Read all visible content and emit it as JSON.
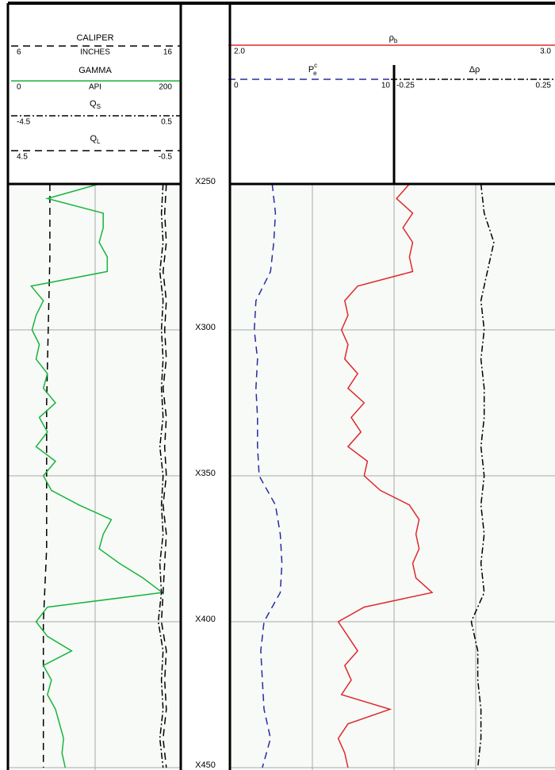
{
  "chart_data": {
    "type": "well-log",
    "depth": {
      "ylim": [
        250,
        450
      ],
      "yticks": [
        {
          "value": 250,
          "label": "X250"
        },
        {
          "value": 300,
          "label": "X300"
        },
        {
          "value": 350,
          "label": "X350"
        },
        {
          "value": 400,
          "label": "X400"
        },
        {
          "value": 450,
          "label": "X450"
        }
      ]
    },
    "tracks": [
      {
        "curves": [
          {
            "name": "CALIPER",
            "unit": "INCHES",
            "color": "#000000",
            "style": "dashed",
            "xlim": [
              6,
              16
            ],
            "xticks": [
              6,
              16
            ],
            "depth": [
              250,
              275,
              300,
              325,
              350,
              375,
              400,
              425,
              450
            ],
            "values": [
              8.2,
              8.2,
              8.1,
              8.0,
              8.0,
              8.0,
              7.8,
              7.8,
              7.8
            ]
          },
          {
            "name": "GAMMA",
            "unit": "API",
            "color": "#19b43c",
            "style": "solid",
            "xlim": [
              0,
              200
            ],
            "xticks": [
              0,
              200
            ],
            "depth": [
              250,
              255,
              260,
              265,
              270,
              275,
              280,
              285,
              290,
              295,
              300,
              305,
              310,
              315,
              320,
              325,
              330,
              335,
              340,
              345,
              350,
              355,
              360,
              365,
              370,
              375,
              380,
              385,
              390,
              395,
              400,
              405,
              410,
              415,
              420,
              425,
              430,
              435,
              440,
              445,
              450
            ],
            "values": [
              105,
              41,
              110,
              110,
              105,
              115,
              115,
              21,
              36,
              27,
              22,
              31,
              27,
              41,
              36,
              51,
              31,
              41,
              27,
              51,
              36,
              46,
              80,
              120,
              110,
              105,
              130,
              159,
              183,
              41,
              27,
              41,
              71,
              36,
              46,
              41,
              51,
              56,
              61,
              59,
              63
            ]
          },
          {
            "name": "Q",
            "name_sub": "S",
            "color": "#000000",
            "style": "dash-dot",
            "xlim": [
              -4.5,
              0.5
            ],
            "xticks": [
              -4.5,
              0.5
            ],
            "depth": [
              250,
              260,
              270,
              280,
              290,
              300,
              310,
              320,
              330,
              340,
              350,
              360,
              370,
              380,
              390,
              400,
              410,
              420,
              430,
              440,
              450
            ],
            "values": [
              0.1,
              0.05,
              0.1,
              0.0,
              0.1,
              0.05,
              0.1,
              0.05,
              0.1,
              0.0,
              0.1,
              0.05,
              0.1,
              0.0,
              0.05,
              -0.05,
              0.1,
              0.05,
              0.1,
              0.0,
              0.1
            ]
          },
          {
            "name": "Q",
            "name_sub": "L",
            "color": "#000000",
            "style": "dashed",
            "xlim": [
              4.5,
              -0.5
            ],
            "xticks": [
              4.5,
              -0.5
            ],
            "depth": [
              250,
              260,
              270,
              280,
              290,
              300,
              310,
              320,
              330,
              340,
              350,
              360,
              370,
              380,
              390,
              400,
              410,
              420,
              430,
              440,
              450
            ],
            "values": [
              -0.2,
              -0.15,
              -0.2,
              -0.1,
              -0.2,
              -0.15,
              -0.2,
              -0.1,
              -0.2,
              -0.15,
              -0.2,
              -0.1,
              -0.2,
              -0.15,
              -0.1,
              -0.05,
              -0.2,
              -0.15,
              -0.2,
              -0.1,
              -0.2
            ]
          }
        ]
      },
      {
        "curves": [
          {
            "name": "ρ",
            "name_sub": "b",
            "color": "#e0282d",
            "style": "solid",
            "xlim": [
              2,
              3
            ],
            "xticks": [
              {
                "value": 2,
                "label": "2.0"
              },
              {
                "value": 3,
                "label": "3.0"
              }
            ],
            "depth": [
              250,
              255,
              260,
              265,
              270,
              275,
              280,
              285,
              290,
              295,
              300,
              305,
              310,
              315,
              320,
              325,
              330,
              335,
              340,
              345,
              350,
              355,
              360,
              365,
              370,
              375,
              380,
              385,
              390,
              395,
              400,
              405,
              410,
              415,
              420,
              425,
              430,
              435,
              440,
              445,
              450
            ],
            "values": [
              2.55,
              2.51,
              2.56,
              2.53,
              2.56,
              2.55,
              2.56,
              2.39,
              2.35,
              2.36,
              2.34,
              2.36,
              2.35,
              2.39,
              2.36,
              2.41,
              2.37,
              2.4,
              2.36,
              2.42,
              2.41,
              2.46,
              2.55,
              2.58,
              2.57,
              2.58,
              2.56,
              2.57,
              2.62,
              2.41,
              2.33,
              2.36,
              2.39,
              2.35,
              2.37,
              2.34,
              2.49,
              2.36,
              2.33,
              2.35,
              2.36
            ]
          },
          {
            "name": "P",
            "name_sub": "e",
            "name_sup": "c",
            "color": "#2a2aa0",
            "style": "dashed",
            "xlim": [
              0,
              10
            ],
            "xticks": [
              0,
              10
            ],
            "depth": [
              250,
              260,
              270,
              280,
              290,
              300,
              310,
              320,
              330,
              340,
              350,
              360,
              370,
              380,
              390,
              400,
              410,
              420,
              430,
              440,
              450
            ],
            "values": [
              2.5,
              2.7,
              2.6,
              2.4,
              1.5,
              1.4,
              1.6,
              1.5,
              1.6,
              1.6,
              1.7,
              2.7,
              3.0,
              3.1,
              3.0,
              2.0,
              1.8,
              1.9,
              2.0,
              2.4,
              1.9
            ]
          },
          {
            "name": "Δρ",
            "color": "#000000",
            "style": "dash-dot",
            "xlim": [
              -0.25,
              0.25
            ],
            "xticks": [
              -0.25,
              0.25
            ],
            "depth": [
              250,
              260,
              270,
              280,
              290,
              300,
              310,
              320,
              330,
              340,
              350,
              360,
              370,
              380,
              390,
              400,
              410,
              420,
              430,
              440,
              450
            ],
            "values": [
              0.02,
              0.03,
              0.06,
              0.04,
              0.02,
              0.03,
              0.02,
              0.03,
              0.03,
              0.02,
              0.03,
              0.02,
              0.03,
              0.02,
              0.03,
              -0.01,
              0.01,
              0.01,
              0.02,
              0.02,
              0.01
            ]
          }
        ]
      }
    ]
  }
}
